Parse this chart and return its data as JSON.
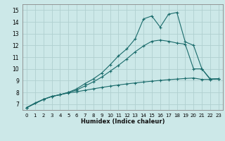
{
  "xlabel": "Humidex (Indice chaleur)",
  "bg_color": "#cce8e8",
  "grid_color": "#b0d0d0",
  "line_color": "#1a6b6b",
  "spine_color": "#888888",
  "xlim": [
    -0.5,
    23.5
  ],
  "ylim": [
    6.5,
    15.5
  ],
  "xticks": [
    0,
    1,
    2,
    3,
    4,
    5,
    6,
    7,
    8,
    9,
    10,
    11,
    12,
    13,
    14,
    15,
    16,
    17,
    18,
    19,
    20,
    21,
    22,
    23
  ],
  "yticks": [
    7,
    8,
    9,
    10,
    11,
    12,
    13,
    14,
    15
  ],
  "line1_x": [
    0,
    1,
    2,
    3,
    4,
    5,
    6,
    7,
    8,
    9,
    10,
    11,
    12,
    13,
    14,
    15,
    16,
    17,
    18,
    19,
    20,
    21,
    22,
    23
  ],
  "line1_y": [
    6.7,
    7.1,
    7.4,
    7.65,
    7.8,
    7.95,
    8.05,
    8.18,
    8.3,
    8.42,
    8.53,
    8.63,
    8.72,
    8.8,
    8.88,
    8.95,
    9.02,
    9.08,
    9.13,
    9.18,
    9.22,
    9.1,
    9.1,
    9.15
  ],
  "line2_x": [
    0,
    2,
    3,
    4,
    5,
    6,
    7,
    8,
    9,
    10,
    11,
    12,
    13,
    14,
    15,
    16,
    17,
    18,
    19,
    20,
    21,
    22,
    23
  ],
  "line2_y": [
    6.7,
    7.4,
    7.65,
    7.8,
    8.0,
    8.2,
    8.55,
    8.9,
    9.3,
    9.8,
    10.3,
    10.85,
    11.45,
    11.95,
    12.35,
    12.45,
    12.35,
    12.2,
    12.1,
    10.0,
    10.0,
    9.1,
    9.15
  ],
  "line3_x": [
    0,
    2,
    3,
    4,
    5,
    6,
    7,
    8,
    9,
    10,
    11,
    12,
    13,
    14,
    15,
    16,
    17,
    18,
    19,
    20,
    21,
    22,
    23
  ],
  "line3_y": [
    6.7,
    7.4,
    7.65,
    7.8,
    8.0,
    8.3,
    8.75,
    9.15,
    9.65,
    10.35,
    11.1,
    11.7,
    12.55,
    14.25,
    14.5,
    13.55,
    14.65,
    14.8,
    12.3,
    12.0,
    10.0,
    9.15,
    9.15
  ]
}
